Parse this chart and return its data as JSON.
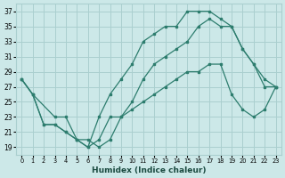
{
  "xlabel": "Humidex (Indice chaleur)",
  "bg_color": "#cce8e8",
  "grid_color": "#aacfcf",
  "line_color": "#2d7d6e",
  "xlim": [
    -0.5,
    23.5
  ],
  "ylim": [
    18,
    38
  ],
  "xticks": [
    0,
    1,
    2,
    3,
    4,
    5,
    6,
    7,
    8,
    9,
    10,
    11,
    12,
    13,
    14,
    15,
    16,
    17,
    18,
    19,
    20,
    21,
    22,
    23
  ],
  "yticks": [
    19,
    21,
    23,
    25,
    27,
    29,
    31,
    33,
    35,
    37
  ],
  "series1_x": [
    0,
    1,
    2,
    3,
    4,
    5,
    6,
    7,
    8,
    9,
    10,
    11,
    12,
    13,
    14,
    15,
    16,
    17,
    18,
    19,
    20,
    21,
    22,
    23
  ],
  "series1_y": [
    28,
    26,
    22,
    22,
    21,
    20,
    19,
    23,
    26,
    28,
    30,
    33,
    34,
    35,
    35,
    37,
    37,
    37,
    36,
    35,
    32,
    30,
    27,
    27
  ],
  "series2_x": [
    0,
    1,
    3,
    4,
    5,
    6,
    7,
    8,
    9,
    10,
    11,
    12,
    13,
    14,
    15,
    16,
    17,
    18,
    19,
    20,
    21,
    22,
    23
  ],
  "series2_y": [
    28,
    26,
    23,
    23,
    20,
    20,
    19,
    20,
    23,
    25,
    28,
    30,
    31,
    32,
    33,
    35,
    36,
    35,
    35,
    32,
    30,
    28,
    27
  ],
  "series3_x": [
    0,
    1,
    2,
    3,
    4,
    5,
    6,
    7,
    8,
    9,
    10,
    11,
    12,
    13,
    14,
    15,
    16,
    17,
    18,
    19,
    20,
    21,
    22,
    23
  ],
  "series3_y": [
    28,
    26,
    22,
    22,
    21,
    20,
    19,
    20,
    23,
    23,
    24,
    25,
    26,
    27,
    28,
    29,
    29,
    30,
    30,
    26,
    24,
    23,
    24,
    27
  ]
}
